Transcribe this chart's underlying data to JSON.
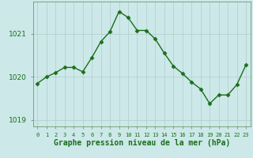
{
  "x": [
    0,
    1,
    2,
    3,
    4,
    5,
    6,
    7,
    8,
    9,
    10,
    11,
    12,
    13,
    14,
    15,
    16,
    17,
    18,
    19,
    20,
    21,
    22,
    23
  ],
  "y": [
    1019.85,
    1020.0,
    1020.1,
    1020.22,
    1020.22,
    1020.12,
    1020.45,
    1020.82,
    1021.05,
    1021.52,
    1021.38,
    1021.08,
    1021.08,
    1020.88,
    1020.55,
    1020.25,
    1020.08,
    1019.88,
    1019.72,
    1019.38,
    1019.58,
    1019.58,
    1019.82,
    1020.28
  ],
  "line_color": "#1a6e1a",
  "marker": "D",
  "marker_size": 2.5,
  "marker_lw": 0.5,
  "line_width": 1.0,
  "bg_color": "#cce8e8",
  "grid_color_major": "#b0cccc",
  "grid_color_minor": "#c8e0e0",
  "xlabel": "Graphe pression niveau de la mer (hPa)",
  "xlabel_fontsize": 7,
  "ytick_fontsize": 6.5,
  "xtick_fontsize": 5,
  "yticks": [
    1019,
    1020,
    1021
  ],
  "ylim": [
    1018.85,
    1021.75
  ],
  "xlim": [
    -0.5,
    23.5
  ],
  "tick_label_color": "#1a6e1a",
  "label_color": "#1a6e1a",
  "spine_color": "#5a8a5a"
}
